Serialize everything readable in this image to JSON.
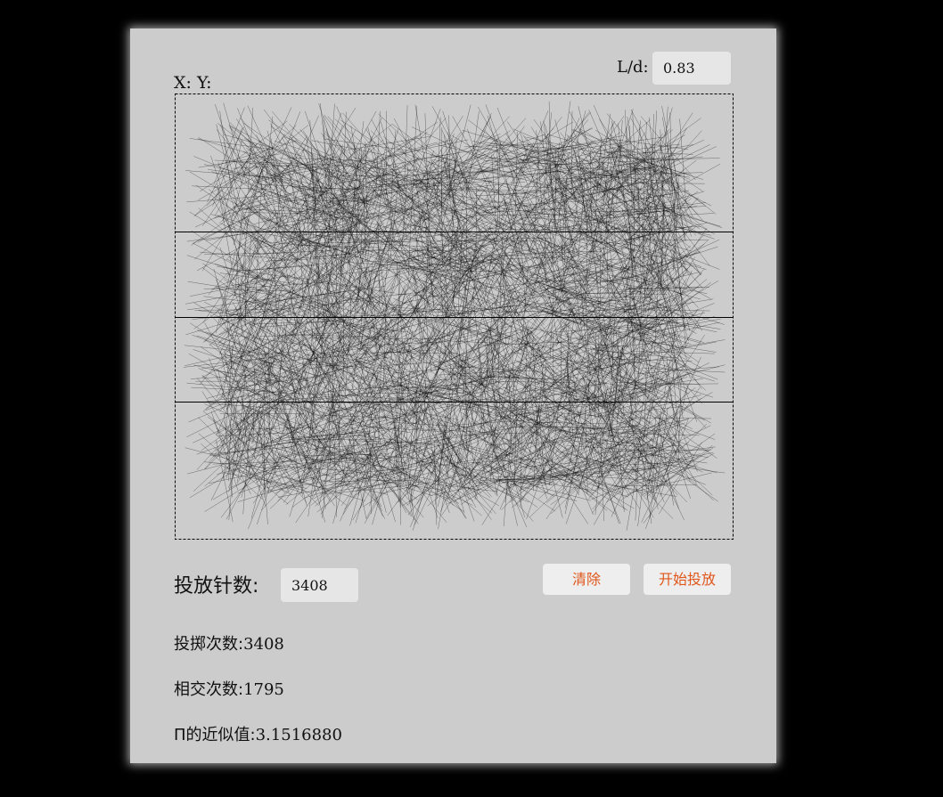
{
  "coord_label": "X: Y:",
  "ld": {
    "label": "L/d:",
    "value": "0.83"
  },
  "simulation": {
    "line_count": 3,
    "line_positions": [
      0.31,
      0.5,
      0.69
    ]
  },
  "controls": {
    "needles_label": "投放针数:",
    "needles_value": "3408",
    "clear_label": "清除",
    "start_label": "开始投放"
  },
  "stats": {
    "throws_label": "投掷次数:",
    "throws_value": "3408",
    "intersections_label": "相交次数:",
    "intersections_value": "1795",
    "pi_label": "Π的近似值:",
    "pi_value": "3.1516880"
  },
  "colors": {
    "panel": "#cccccc",
    "accent": "#e0561b",
    "input_bg": "#e6e6e6",
    "background": "#000000"
  }
}
